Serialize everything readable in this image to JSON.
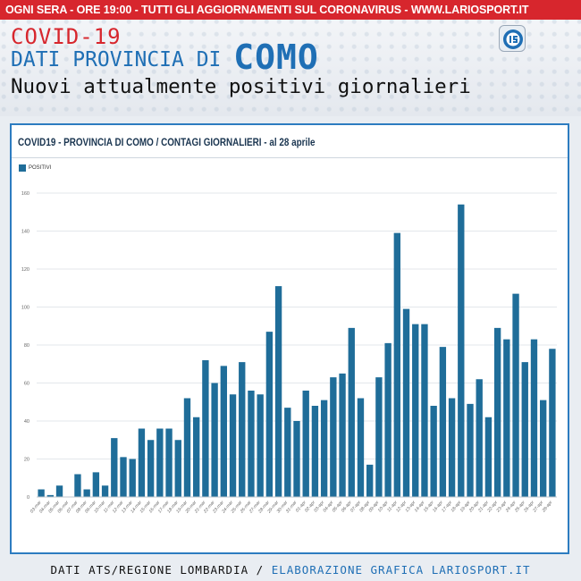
{
  "header": {
    "banner": "OGNI SERA - ORE 19:00 - TUTTI GLI AGGIORNAMENTI SUL CORONAVIRUS - WWW.LARIOSPORT.IT",
    "line1": "COVID-19",
    "line2_prefix": "DATI PROVINCIA DI",
    "line2_city": "COMO",
    "line3": "Nuovi attualmente positivi giornalieri"
  },
  "footer": {
    "left": "DATI ATS/REGIONE LOMBARDIA /",
    "right": "ELABORAZIONE GRAFICA LARIOSPORT.IT"
  },
  "colors": {
    "bar": "#1f6d99",
    "accent_red": "#d7262d",
    "accent_blue": "#1f6fb5"
  },
  "chart_data": {
    "type": "bar",
    "title": "COVID19 - PROVINCIA DI COMO / CONTAGI GIORNALIERI - al 28 aprile",
    "ylim": [
      0,
      160
    ],
    "yticks": [
      0,
      20,
      40,
      60,
      80,
      100,
      120,
      140,
      160
    ],
    "legend": "top-left",
    "categories": [
      "03-mar",
      "04-mar",
      "05-mar",
      "06-mar",
      "07-mar",
      "08-mar",
      "09-mar",
      "10-mar",
      "11-mar",
      "12-mar",
      "13-mar",
      "14-mar",
      "15-mar",
      "16-mar",
      "17-mar",
      "18-mar",
      "19-mar",
      "20-mar",
      "21-mar",
      "22-mar",
      "23-mar",
      "24-mar",
      "25-mar",
      "26-mar",
      "27-mar",
      "28-mar",
      "29-mar",
      "30-mar",
      "31-mar",
      "01-apr",
      "02-apr",
      "03-apr",
      "04-apr",
      "05-apr",
      "06-apr",
      "07-apr",
      "08-apr",
      "09-apr",
      "10-apr",
      "11-apr",
      "12-apr",
      "13-apr",
      "14-apr",
      "15-apr",
      "16-apr",
      "17-apr",
      "18-apr",
      "19-apr",
      "20-apr",
      "21-apr",
      "22-apr",
      "23-apr",
      "24-apr",
      "25-apr",
      "26-apr",
      "27-apr",
      "28-apr"
    ],
    "series": [
      {
        "name": "POSITIVI",
        "values": [
          4,
          1,
          6,
          0,
          12,
          4,
          13,
          6,
          31,
          21,
          20,
          36,
          30,
          36,
          36,
          30,
          52,
          42,
          72,
          60,
          69,
          54,
          71,
          56,
          54,
          87,
          111,
          47,
          40,
          56,
          48,
          51,
          63,
          65,
          89,
          52,
          17,
          63,
          81,
          139,
          99,
          91,
          91,
          48,
          79,
          52,
          154,
          49,
          62,
          42,
          89,
          83,
          107,
          71,
          83,
          51,
          78
        ]
      }
    ]
  }
}
